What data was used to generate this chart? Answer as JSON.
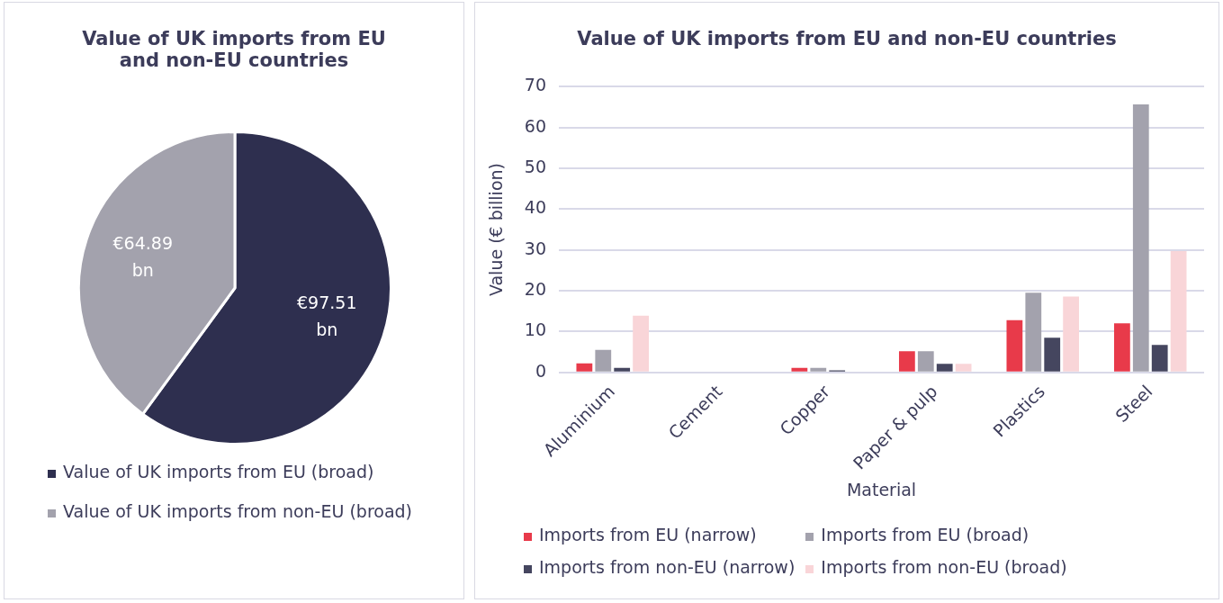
{
  "chart_data": [
    {
      "type": "pie",
      "title": "Value of UK imports from EU and non-EU countries",
      "categories": [
        "Value of UK imports from EU (broad)",
        "Value of UK imports from non-EU (broad)"
      ],
      "values": [
        97.51,
        64.89
      ],
      "colors": [
        "#2e2f4f",
        "#a3a2ad"
      ],
      "value_labels": [
        "€97.51 bn",
        "€64.89 bn"
      ],
      "legend": "bottom"
    },
    {
      "type": "bar",
      "title": "Value of UK imports from EU and non-EU countries",
      "xlabel": "Material",
      "ylabel": "Value (€ billion)",
      "categories": [
        "Aluminium",
        "Cement",
        "Copper",
        "Paper & pulp",
        "Plastics",
        "Steel"
      ],
      "series": [
        {
          "name": "Imports from EU (narrow)",
          "color": "#e83a4a",
          "values": [
            2.2,
            null,
            1.1,
            5.2,
            12.8,
            12.0
          ]
        },
        {
          "name": "Imports from EU (broad)",
          "color": "#a3a2ad",
          "values": [
            5.5,
            null,
            1.1,
            5.2,
            19.5,
            65.7
          ]
        },
        {
          "name": "Imports from non-EU (narrow)",
          "color": "#45465f",
          "values": [
            1.1,
            null,
            0.5,
            2.1,
            8.5,
            6.7
          ]
        },
        {
          "name": "Imports from non-EU (broad)",
          "color": "#f9d5d8",
          "values": [
            13.9,
            null,
            0.2,
            2.1,
            18.6,
            29.7
          ]
        }
      ],
      "ylim": [
        0,
        70
      ],
      "yticks": [
        0,
        10,
        20,
        30,
        40,
        50,
        60,
        70
      ],
      "grid": "y",
      "legend": "bottom"
    }
  ]
}
